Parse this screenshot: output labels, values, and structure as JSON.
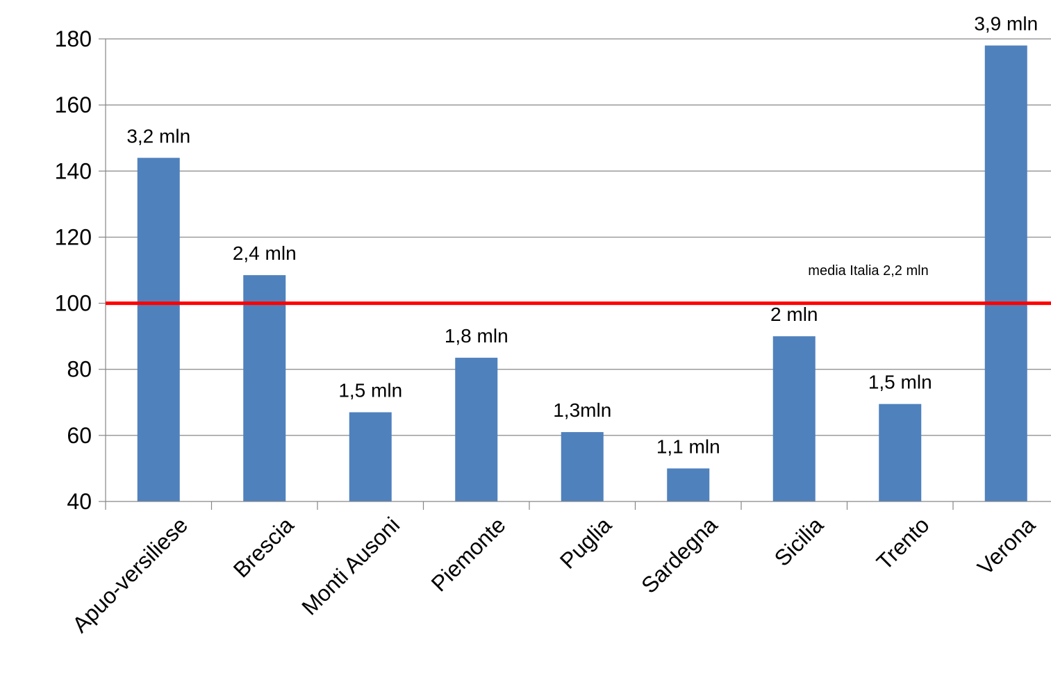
{
  "chart_data": {
    "type": "bar",
    "categories": [
      "Apuo-versiliese",
      "Brescia",
      "Monti Ausoni",
      "Piemonte",
      "Puglia",
      "Sardegna",
      "Sicilia",
      "Trento",
      "Verona"
    ],
    "values": [
      144,
      108.5,
      67,
      83.5,
      61,
      50,
      90,
      69.5,
      178
    ],
    "data_labels": [
      "3,2 mln",
      "2,4 mln",
      "1,5 mln",
      "1,8 mln",
      "1,3mln",
      "1,1 mln",
      "2 mln",
      "1,5 mln",
      "3,9 mln"
    ],
    "ylim": [
      40,
      180
    ],
    "yticks": [
      40,
      60,
      80,
      100,
      120,
      140,
      160,
      180
    ],
    "grid": true,
    "bar_color": "#4F81BD",
    "reference_line": {
      "value": 100,
      "color": "#FF0000",
      "label": "media Italia 2,2 mln"
    }
  }
}
